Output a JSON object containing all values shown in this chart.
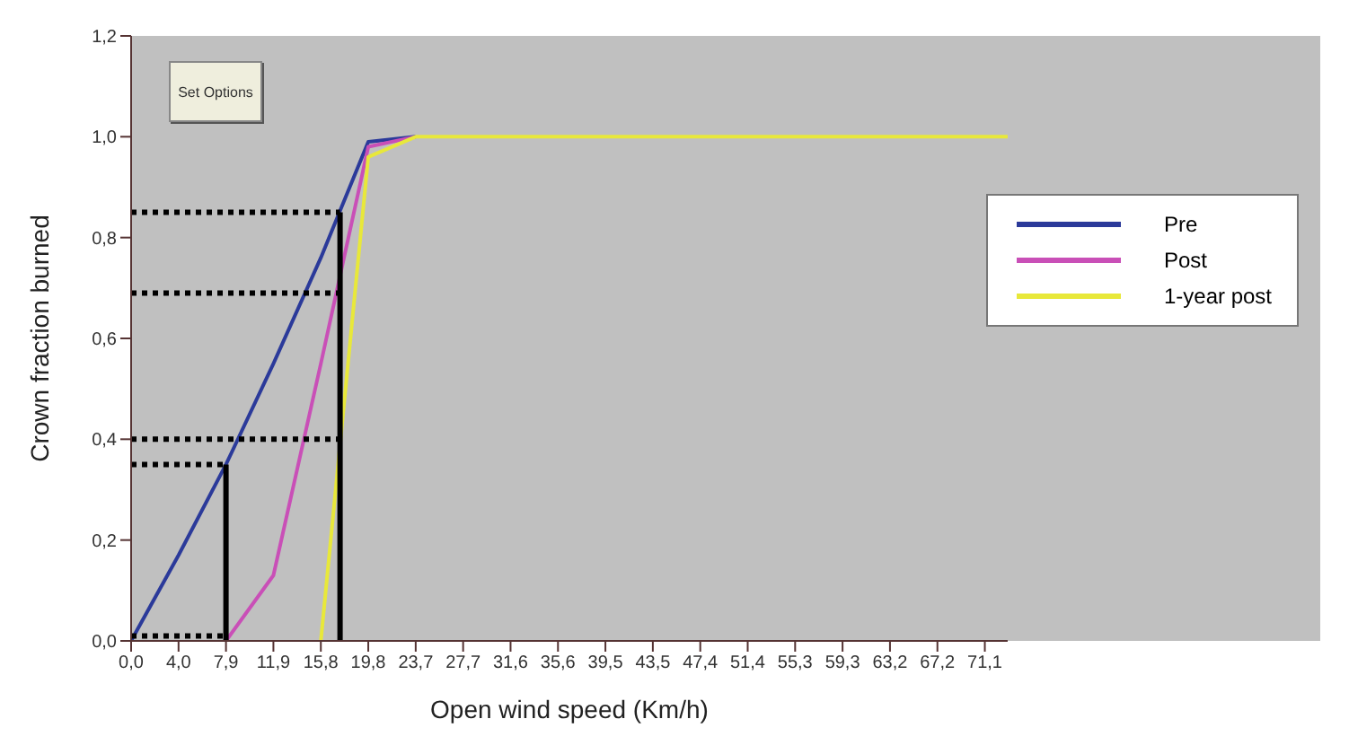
{
  "chart_data": {
    "type": "line",
    "xlabel": "Open wind speed (Km/h)",
    "ylabel": "Crown fraction burned",
    "annotations": [
      "Set Options"
    ],
    "xlim": [
      0,
      73
    ],
    "ylim": [
      0,
      1.2
    ],
    "xticks": [
      {
        "value": 0,
        "label": "0,0"
      },
      {
        "value": 3.95,
        "label": "4,0"
      },
      {
        "value": 7.9,
        "label": "7,9"
      },
      {
        "value": 11.85,
        "label": "11,9"
      },
      {
        "value": 15.8,
        "label": "15,8"
      },
      {
        "value": 19.75,
        "label": "19,8"
      },
      {
        "value": 23.7,
        "label": "23,7"
      },
      {
        "value": 27.65,
        "label": "27,7"
      },
      {
        "value": 31.6,
        "label": "31,6"
      },
      {
        "value": 35.55,
        "label": "35,6"
      },
      {
        "value": 39.5,
        "label": "39,5"
      },
      {
        "value": 43.45,
        "label": "43,5"
      },
      {
        "value": 47.4,
        "label": "47,4"
      },
      {
        "value": 51.35,
        "label": "51,4"
      },
      {
        "value": 55.3,
        "label": "55,3"
      },
      {
        "value": 59.25,
        "label": "59,3"
      },
      {
        "value": 63.2,
        "label": "63,2"
      },
      {
        "value": 67.15,
        "label": "67,2"
      },
      {
        "value": 71.1,
        "label": "71,1"
      }
    ],
    "yticks": [
      {
        "value": 0,
        "label": "0,0"
      },
      {
        "value": 0.2,
        "label": "0,2"
      },
      {
        "value": 0.4,
        "label": "0,4"
      },
      {
        "value": 0.6,
        "label": "0,6"
      },
      {
        "value": 0.8,
        "label": "0,8"
      },
      {
        "value": 1,
        "label": "1,0"
      },
      {
        "value": 1.2,
        "label": "1,2"
      }
    ],
    "grid": false,
    "legend": "right",
    "marker": "none",
    "series": [
      {
        "name": "Pre",
        "color": "#2b3a9a",
        "x": [
          0,
          3.95,
          7.9,
          11.85,
          15.8,
          19.75,
          23.7
        ],
        "values": [
          0,
          0.17,
          0.35,
          0.55,
          0.76,
          0.99,
          1.0
        ]
      },
      {
        "name": "Post",
        "color": "#c94fb7",
        "x": [
          7.9,
          11.85,
          15.8,
          19.75,
          23.7
        ],
        "values": [
          0,
          0.13,
          0.55,
          0.98,
          1.0
        ]
      },
      {
        "name": "1-year post",
        "color": "#e8e83a",
        "x": [
          15.8,
          19.75,
          23.7,
          73
        ],
        "values": [
          0,
          0.96,
          1.0,
          1.0
        ]
      },
      {
        "color": "#000000",
        "line_style": "dotted",
        "x": [
          0,
          17.4
        ],
        "values": [
          0.85,
          0.85
        ]
      },
      {
        "color": "#000000",
        "line_style": "dotted",
        "x": [
          0,
          17.4
        ],
        "values": [
          0.69,
          0.69
        ]
      },
      {
        "color": "#000000",
        "line_style": "dotted",
        "x": [
          0,
          17.4
        ],
        "values": [
          0.4,
          0.4
        ]
      },
      {
        "color": "#000000",
        "line_style": "dotted",
        "x": [
          0,
          7.9
        ],
        "values": [
          0.35,
          0.35
        ]
      },
      {
        "color": "#000000",
        "line_style": "dotted",
        "x": [
          0,
          7.9
        ],
        "values": [
          0.01,
          0.01
        ]
      },
      {
        "color": "#000000",
        "line_style": "solid",
        "x": [
          7.9,
          7.9
        ],
        "values": [
          0,
          0.35
        ]
      },
      {
        "color": "#000000",
        "line_style": "solid",
        "x": [
          17.4,
          17.4
        ],
        "values": [
          0,
          0.85
        ]
      }
    ]
  }
}
